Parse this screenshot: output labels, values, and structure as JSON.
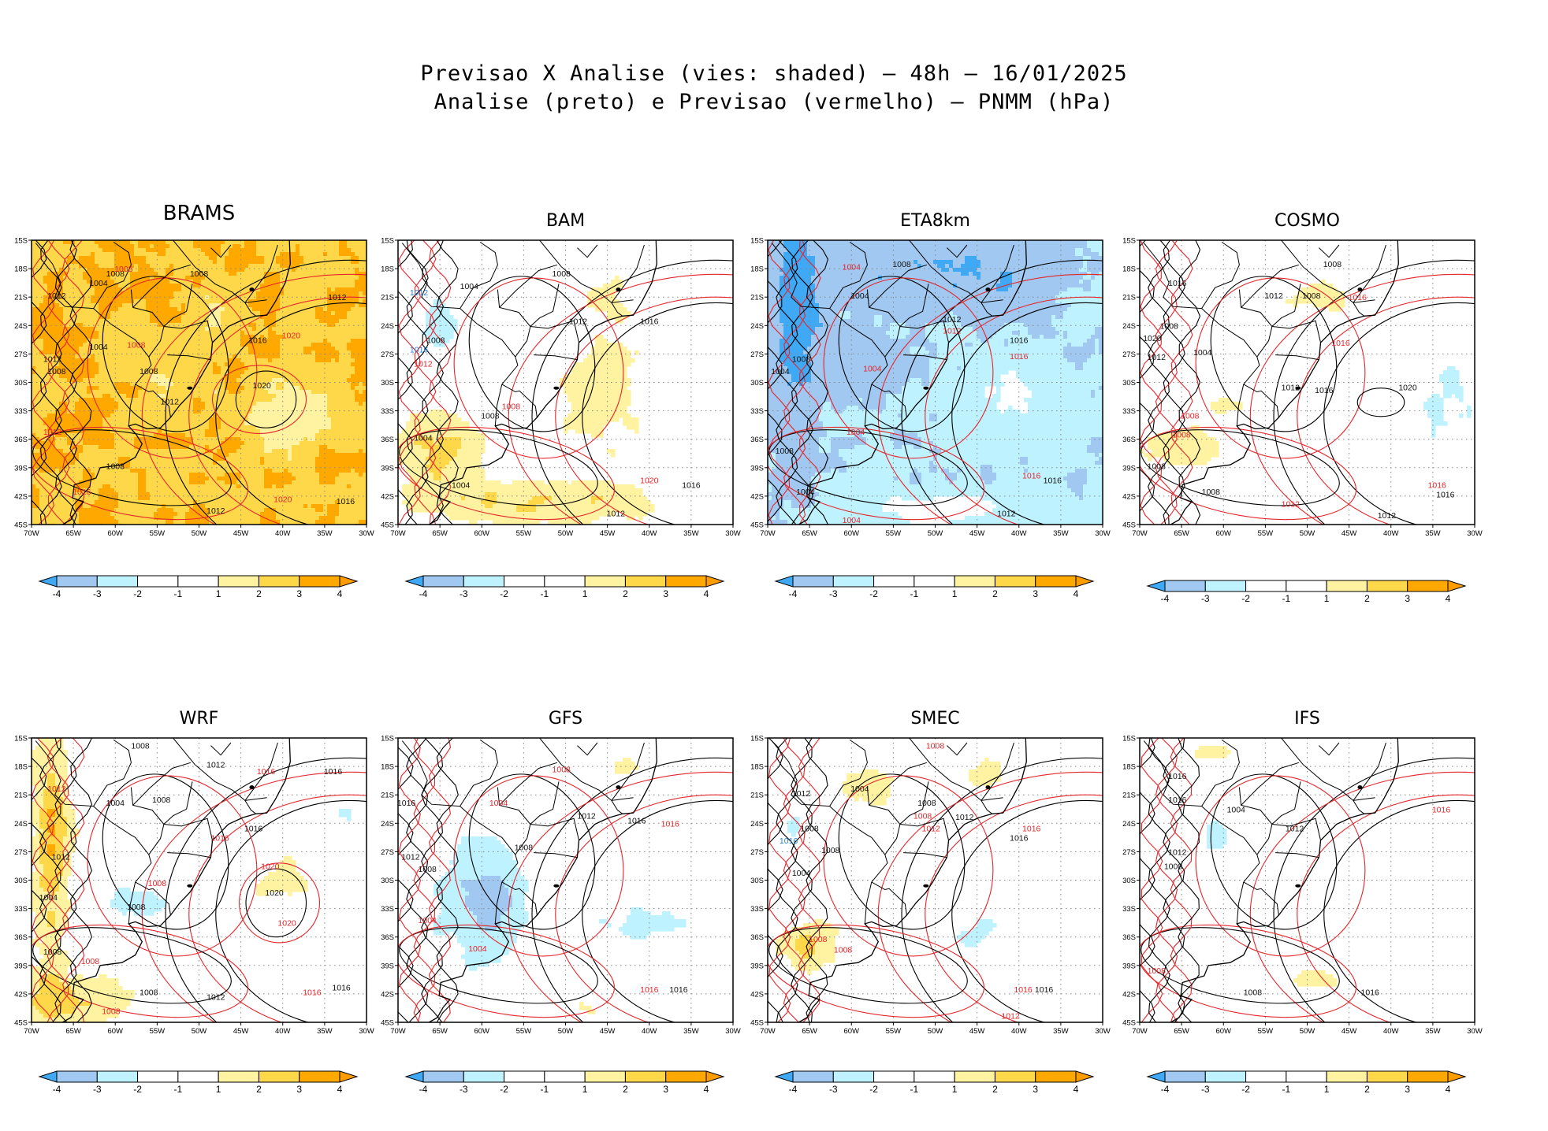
{
  "figure": {
    "title_line1": "Previsao X Analise (vies: shaded) – 48h – 16/01/2025",
    "title_line2": "Analise (preto) e Previsao (vermelho) – PNMM (hPa)"
  },
  "axes": {
    "y_ticks": [
      "15S",
      "18S",
      "21S",
      "24S",
      "27S",
      "30S",
      "33S",
      "36S",
      "39S",
      "42S",
      "45S"
    ],
    "x_ticks": [
      "70W",
      "65W",
      "60W",
      "55W",
      "50W",
      "45W",
      "40W",
      "35W",
      "30W"
    ]
  },
  "colorbar": {
    "labels": [
      "-4",
      "-3",
      "-2",
      "-1",
      "1",
      "2",
      "3",
      "4"
    ],
    "colors": [
      "#3fa9f5",
      "#a0c8f0",
      "#bff2ff",
      "#ffffff",
      "#ffffff",
      "#fff2a0",
      "#ffd84a",
      "#ffa800",
      "#ff9c00"
    ]
  },
  "colors": {
    "analysis_contour": "#000000",
    "forecast_contour": "#e5262b",
    "grid": "#888888"
  },
  "chart_data": [
    {
      "type": "heatmap",
      "title": "BRAMS",
      "variable": "PNMM bias (hPa)",
      "lon_range": [
        -70,
        -30
      ],
      "lat_range": [
        -45,
        -15
      ],
      "dominant_bias": "positive 2 to 4",
      "contour_labels": [
        {
          "text": "1008",
          "color": "black",
          "lon": -60,
          "lat": -18.5
        },
        {
          "text": "1004",
          "color": "black",
          "lon": -62,
          "lat": -19.5
        },
        {
          "text": "1012",
          "color": "black",
          "lon": -33.5,
          "lat": -21
        },
        {
          "text": "1008",
          "color": "red",
          "lon": -59,
          "lat": -18
        },
        {
          "text": "1008",
          "color": "black",
          "lon": -50,
          "lat": -18.5
        },
        {
          "text": "1012",
          "color": "black",
          "lon": -67,
          "lat": -20.8
        },
        {
          "text": "1004",
          "color": "black",
          "lon": -62,
          "lat": -26.2
        },
        {
          "text": "1012",
          "color": "black",
          "lon": -67.5,
          "lat": -27.5
        },
        {
          "text": "1008",
          "color": "black",
          "lon": -67,
          "lat": -28.8
        },
        {
          "text": "1008",
          "color": "red",
          "lon": -57.5,
          "lat": -26
        },
        {
          "text": "1008",
          "color": "black",
          "lon": -56,
          "lat": -28.8
        },
        {
          "text": "1016",
          "color": "black",
          "lon": -43,
          "lat": -25.5
        },
        {
          "text": "1020",
          "color": "red",
          "lon": -39,
          "lat": -25
        },
        {
          "text": "1020",
          "color": "black",
          "lon": -42.5,
          "lat": -30.3
        },
        {
          "text": "1012",
          "color": "black",
          "lon": -53.5,
          "lat": -32
        },
        {
          "text": "1012",
          "color": "red",
          "lon": -67.5,
          "lat": -35.2
        },
        {
          "text": "1008",
          "color": "black",
          "lon": -60,
          "lat": -38.8
        },
        {
          "text": "1016",
          "color": "red",
          "lon": -64,
          "lat": -41.5
        },
        {
          "text": "1020",
          "color": "red",
          "lon": -40,
          "lat": -42.3
        },
        {
          "text": "1016",
          "color": "black",
          "lon": -32.5,
          "lat": -42.5
        },
        {
          "text": "1012",
          "color": "black",
          "lon": -48,
          "lat": -43.5
        }
      ]
    },
    {
      "type": "heatmap",
      "title": "BAM",
      "variable": "PNMM bias (hPa)",
      "lon_range": [
        -70,
        -30
      ],
      "lat_range": [
        -45,
        -15
      ],
      "dominant_bias": "negative -1 north, positive 1 to 3 ocean",
      "contour_labels": [
        {
          "text": "1008",
          "color": "black",
          "lon": -50.5,
          "lat": -18.5
        },
        {
          "text": "1004",
          "color": "black",
          "lon": -61.5,
          "lat": -19.8
        },
        {
          "text": "1012",
          "color": "blue",
          "lon": -67.5,
          "lat": -20.5
        },
        {
          "text": "1008",
          "color": "black",
          "lon": -65.5,
          "lat": -25.5
        },
        {
          "text": "1016",
          "color": "blue",
          "lon": -67.5,
          "lat": -26.5
        },
        {
          "text": "1012",
          "color": "red",
          "lon": -67,
          "lat": -28
        },
        {
          "text": "1012",
          "color": "black",
          "lon": -48.5,
          "lat": -23.5
        },
        {
          "text": "1016",
          "color": "black",
          "lon": -40,
          "lat": -23.5
        },
        {
          "text": "1008",
          "color": "red",
          "lon": -56.5,
          "lat": -32.5
        },
        {
          "text": "1008",
          "color": "black",
          "lon": -59,
          "lat": -33.5
        },
        {
          "text": "1004",
          "color": "black",
          "lon": -67,
          "lat": -35.8
        },
        {
          "text": "1004",
          "color": "black",
          "lon": -62.5,
          "lat": -40.8
        },
        {
          "text": "1020",
          "color": "red",
          "lon": -40,
          "lat": -40.3
        },
        {
          "text": "1016",
          "color": "black",
          "lon": -35,
          "lat": -40.8
        },
        {
          "text": "1012",
          "color": "black",
          "lon": -44,
          "lat": -43.8
        }
      ]
    },
    {
      "type": "heatmap",
      "title": "ETA8km",
      "variable": "PNMM bias (hPa)",
      "lon_range": [
        -70,
        -30
      ],
      "lat_range": [
        -45,
        -15
      ],
      "dominant_bias": "negative -1 to -4",
      "contour_labels": [
        {
          "text": "1004",
          "color": "red",
          "lon": -60,
          "lat": -17.8
        },
        {
          "text": "1008",
          "color": "black",
          "lon": -54,
          "lat": -17.5
        },
        {
          "text": "1004",
          "color": "black",
          "lon": -59,
          "lat": -20.8
        },
        {
          "text": "1012",
          "color": "black",
          "lon": -48,
          "lat": -23.3
        },
        {
          "text": "1012",
          "color": "red",
          "lon": -48,
          "lat": -24.5
        },
        {
          "text": "1016",
          "color": "black",
          "lon": -40,
          "lat": -25.5
        },
        {
          "text": "1016",
          "color": "red",
          "lon": -40,
          "lat": -27.2
        },
        {
          "text": "1008",
          "color": "black",
          "lon": -66,
          "lat": -27.5
        },
        {
          "text": "1004",
          "color": "black",
          "lon": -68.5,
          "lat": -28.8
        },
        {
          "text": "1004",
          "color": "red",
          "lon": -57.5,
          "lat": -28.5
        },
        {
          "text": "1004",
          "color": "red",
          "lon": -59.5,
          "lat": -35.2
        },
        {
          "text": "1008",
          "color": "black",
          "lon": -68,
          "lat": -37.2
        },
        {
          "text": "1016",
          "color": "red",
          "lon": -38.5,
          "lat": -39.8
        },
        {
          "text": "1016",
          "color": "black",
          "lon": -36,
          "lat": -40.3
        },
        {
          "text": "1004",
          "color": "black",
          "lon": -65.5,
          "lat": -41.5
        },
        {
          "text": "1012",
          "color": "black",
          "lon": -41.5,
          "lat": -43.8
        },
        {
          "text": "1004",
          "color": "red",
          "lon": -60,
          "lat": -44.5
        }
      ]
    },
    {
      "type": "heatmap",
      "title": "COSMO",
      "variable": "PNMM bias (hPa)",
      "lon_range": [
        -70,
        -30
      ],
      "lat_range": [
        -45,
        -15
      ],
      "dominant_bias": "mixed, small",
      "contour_labels": [
        {
          "text": "1008",
          "color": "black",
          "lon": -47,
          "lat": -17.5
        },
        {
          "text": "1016",
          "color": "black",
          "lon": -65.5,
          "lat": -19.5
        },
        {
          "text": "1008",
          "color": "black",
          "lon": -49.5,
          "lat": -20.8
        },
        {
          "text": "1012",
          "color": "black",
          "lon": -54,
          "lat": -20.8
        },
        {
          "text": "1016",
          "color": "red",
          "lon": -44,
          "lat": -21
        },
        {
          "text": "1008",
          "color": "black",
          "lon": -66.5,
          "lat": -24
        },
        {
          "text": "1020",
          "color": "black",
          "lon": -68.5,
          "lat": -25.3
        },
        {
          "text": "1016",
          "color": "red",
          "lon": -46,
          "lat": -25.8
        },
        {
          "text": "1012",
          "color": "black",
          "lon": -68,
          "lat": -27.3
        },
        {
          "text": "1004",
          "color": "black",
          "lon": -62.5,
          "lat": -26.8
        },
        {
          "text": "1012",
          "color": "black",
          "lon": -52,
          "lat": -30.5
        },
        {
          "text": "1016",
          "color": "black",
          "lon": -48,
          "lat": -30.8
        },
        {
          "text": "1020",
          "color": "black",
          "lon": -38,
          "lat": -30.5
        },
        {
          "text": "1008",
          "color": "red",
          "lon": -64,
          "lat": -33.5
        },
        {
          "text": "1008",
          "color": "red",
          "lon": -65,
          "lat": -35.5
        },
        {
          "text": "1008",
          "color": "black",
          "lon": -68,
          "lat": -38.8
        },
        {
          "text": "1016",
          "color": "red",
          "lon": -34.5,
          "lat": -40.8
        },
        {
          "text": "1016",
          "color": "black",
          "lon": -33.5,
          "lat": -41.8
        },
        {
          "text": "1008",
          "color": "black",
          "lon": -61.5,
          "lat": -41.5
        },
        {
          "text": "1012",
          "color": "red",
          "lon": -52,
          "lat": -42.8
        },
        {
          "text": "1012",
          "color": "black",
          "lon": -40.5,
          "lat": -44
        }
      ]
    },
    {
      "type": "heatmap",
      "title": "WRF",
      "variable": "PNMM bias (hPa)",
      "lon_range": [
        -70,
        -30
      ],
      "lat_range": [
        -45,
        -15
      ],
      "dominant_bias": "positive west, small elsewhere",
      "contour_labels": [
        {
          "text": "1008",
          "color": "black",
          "lon": -57,
          "lat": -15.8
        },
        {
          "text": "1016",
          "color": "black",
          "lon": -34,
          "lat": -18.5
        },
        {
          "text": "1012",
          "color": "black",
          "lon": -48,
          "lat": -17.8
        },
        {
          "text": "1016",
          "color": "red",
          "lon": -42,
          "lat": -18.5
        },
        {
          "text": "1012",
          "color": "red",
          "lon": -67,
          "lat": -20.3
        },
        {
          "text": "1004",
          "color": "black",
          "lon": -60,
          "lat": -21.8
        },
        {
          "text": "1008",
          "color": "black",
          "lon": -54.5,
          "lat": -21.5
        },
        {
          "text": "1016",
          "color": "black",
          "lon": -43.5,
          "lat": -24.5
        },
        {
          "text": "1016",
          "color": "red",
          "lon": -47.5,
          "lat": -25.5
        },
        {
          "text": "1012",
          "color": "black",
          "lon": -66.5,
          "lat": -27.5
        },
        {
          "text": "1020",
          "color": "red",
          "lon": -41.5,
          "lat": -28.5
        },
        {
          "text": "1008",
          "color": "red",
          "lon": -55,
          "lat": -30.3
        },
        {
          "text": "1020",
          "color": "black",
          "lon": -41,
          "lat": -31.3
        },
        {
          "text": "1004",
          "color": "black",
          "lon": -68,
          "lat": -31.8
        },
        {
          "text": "1008",
          "color": "black",
          "lon": -57.5,
          "lat": -32.8
        },
        {
          "text": "1020",
          "color": "red",
          "lon": -39.5,
          "lat": -34.5
        },
        {
          "text": "1008",
          "color": "black",
          "lon": -67.5,
          "lat": -37.5
        },
        {
          "text": "1008",
          "color": "red",
          "lon": -63,
          "lat": -38.5
        },
        {
          "text": "1016",
          "color": "black",
          "lon": -33,
          "lat": -41.3
        },
        {
          "text": "1016",
          "color": "red",
          "lon": -36.5,
          "lat": -41.8
        },
        {
          "text": "1012",
          "color": "black",
          "lon": -48,
          "lat": -42.3
        },
        {
          "text": "1008",
          "color": "black",
          "lon": -56,
          "lat": -41.8
        },
        {
          "text": "1008",
          "color": "red",
          "lon": -60.5,
          "lat": -43.8
        }
      ]
    },
    {
      "type": "heatmap",
      "title": "GFS",
      "variable": "PNMM bias (hPa)",
      "lon_range": [
        -70,
        -30
      ],
      "lat_range": [
        -45,
        -15
      ],
      "dominant_bias": "negative over Argentina",
      "contour_labels": [
        {
          "text": "1008",
          "color": "red",
          "lon": -50.5,
          "lat": -18.3
        },
        {
          "text": "1016",
          "color": "black",
          "lon": -69,
          "lat": -21.8
        },
        {
          "text": "1004",
          "color": "red",
          "lon": -58,
          "lat": -21.8
        },
        {
          "text": "1012",
          "color": "black",
          "lon": -47.5,
          "lat": -23.2
        },
        {
          "text": "1016",
          "color": "black",
          "lon": -41.5,
          "lat": -23.7
        },
        {
          "text": "1016",
          "color": "red",
          "lon": -37.5,
          "lat": -24
        },
        {
          "text": "1012",
          "color": "black",
          "lon": -68.5,
          "lat": -27.5
        },
        {
          "text": "1008",
          "color": "black",
          "lon": -66.5,
          "lat": -28.8
        },
        {
          "text": "1008",
          "color": "black",
          "lon": -55,
          "lat": -26.5
        },
        {
          "text": "1004",
          "color": "red",
          "lon": -66.5,
          "lat": -34.2
        },
        {
          "text": "1004",
          "color": "red",
          "lon": -60.5,
          "lat": -37.2
        },
        {
          "text": "1016",
          "color": "red",
          "lon": -40,
          "lat": -41.5
        },
        {
          "text": "1016",
          "color": "black",
          "lon": -36.5,
          "lat": -41.5
        }
      ]
    },
    {
      "type": "heatmap",
      "title": "SMEC",
      "variable": "PNMM bias (hPa)",
      "lon_range": [
        -70,
        -30
      ],
      "lat_range": [
        -45,
        -15
      ],
      "dominant_bias": "small, positive at 37S coast",
      "contour_labels": [
        {
          "text": "1008",
          "color": "red",
          "lon": -50,
          "lat": -15.8
        },
        {
          "text": "1004",
          "color": "black",
          "lon": -59,
          "lat": -20.3
        },
        {
          "text": "1012",
          "color": "black",
          "lon": -66,
          "lat": -20.8
        },
        {
          "text": "1008",
          "color": "black",
          "lon": -51,
          "lat": -21.8
        },
        {
          "text": "1008",
          "color": "red",
          "lon": -51.5,
          "lat": -23.2
        },
        {
          "text": "1012",
          "color": "black",
          "lon": -46.5,
          "lat": -23.3
        },
        {
          "text": "1016",
          "color": "red",
          "lon": -38.5,
          "lat": -24.5
        },
        {
          "text": "1012",
          "color": "red",
          "lon": -50.5,
          "lat": -24.5
        },
        {
          "text": "1008",
          "color": "black",
          "lon": -65,
          "lat": -24.5
        },
        {
          "text": "1016",
          "color": "black",
          "lon": -40,
          "lat": -25.5
        },
        {
          "text": "1016",
          "color": "blue",
          "lon": -67.5,
          "lat": -25.8
        },
        {
          "text": "1008",
          "color": "black",
          "lon": -62.5,
          "lat": -26.8
        },
        {
          "text": "1004",
          "color": "black",
          "lon": -66,
          "lat": -29.2
        },
        {
          "text": "1008",
          "color": "red",
          "lon": -64,
          "lat": -36.2
        },
        {
          "text": "1008",
          "color": "red",
          "lon": -61,
          "lat": -37.3
        },
        {
          "text": "1016",
          "color": "red",
          "lon": -39.5,
          "lat": -41.5
        },
        {
          "text": "1016",
          "color": "black",
          "lon": -37,
          "lat": -41.5
        },
        {
          "text": "1012",
          "color": "red",
          "lon": -41,
          "lat": -44.3
        }
      ]
    },
    {
      "type": "heatmap",
      "title": "IFS",
      "variable": "PNMM bias (hPa)",
      "lon_range": [
        -70,
        -30
      ],
      "lat_range": [
        -45,
        -15
      ],
      "dominant_bias": "near zero",
      "contour_labels": [
        {
          "text": "1016",
          "color": "black",
          "lon": -65.5,
          "lat": -19
        },
        {
          "text": "1016",
          "color": "black",
          "lon": -65.5,
          "lat": -21.5
        },
        {
          "text": "1004",
          "color": "black",
          "lon": -58.5,
          "lat": -22.5
        },
        {
          "text": "1016",
          "color": "red",
          "lon": -34,
          "lat": -22.5
        },
        {
          "text": "1012",
          "color": "black",
          "lon": -51.5,
          "lat": -24.5
        },
        {
          "text": "1012",
          "color": "black",
          "lon": -65.5,
          "lat": -27
        },
        {
          "text": "1008",
          "color": "black",
          "lon": -66,
          "lat": -28.5
        },
        {
          "text": "1008",
          "color": "red",
          "lon": -68,
          "lat": -39.5
        },
        {
          "text": "1008",
          "color": "black",
          "lon": -56.5,
          "lat": -41.8
        },
        {
          "text": "1016",
          "color": "black",
          "lon": -42.5,
          "lat": -41.8
        }
      ]
    }
  ]
}
